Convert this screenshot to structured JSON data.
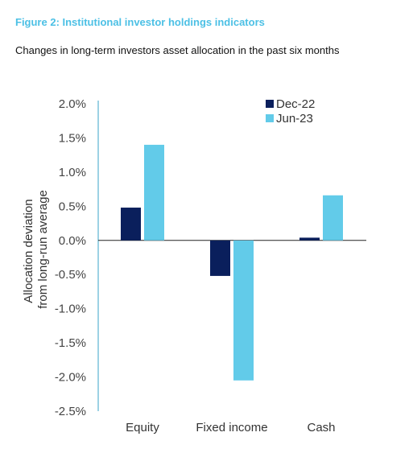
{
  "figure_title": "Figure 2: Institutional investor holdings indicators",
  "figure_subtitle": "Changes in long-term investors asset allocation in the past six months",
  "chart_data": {
    "type": "bar",
    "title": "Figure 2: Institutional investor holdings indicators",
    "subtitle": "Changes in long-term investors asset allocation in the past six months",
    "xlabel": "",
    "ylabel": [
      "Allocation deviation",
      "from long-run average"
    ],
    "categories": [
      "Equity",
      "Fixed income",
      "Cash"
    ],
    "series": [
      {
        "name": "Dec-22",
        "color": "#0a1f5c",
        "values": [
          0.48,
          -0.52,
          0.04
        ]
      },
      {
        "name": "Jun-23",
        "color": "#62cbe9",
        "values": [
          1.4,
          -2.05,
          0.66
        ]
      }
    ],
    "ylim": [
      -2.5,
      2.0
    ],
    "yticks": [
      "2.0%",
      "1.5%",
      "1.0%",
      "0.5%",
      "0.0%",
      "-0.5%",
      "-1.0%",
      "-1.5%",
      "-2.0%",
      "-2.5%"
    ],
    "ytick_values": [
      2.0,
      1.5,
      1.0,
      0.5,
      0.0,
      -0.5,
      -1.0,
      -1.5,
      -2.0,
      -2.5
    ],
    "legend_position": "top-right",
    "grid": false
  }
}
